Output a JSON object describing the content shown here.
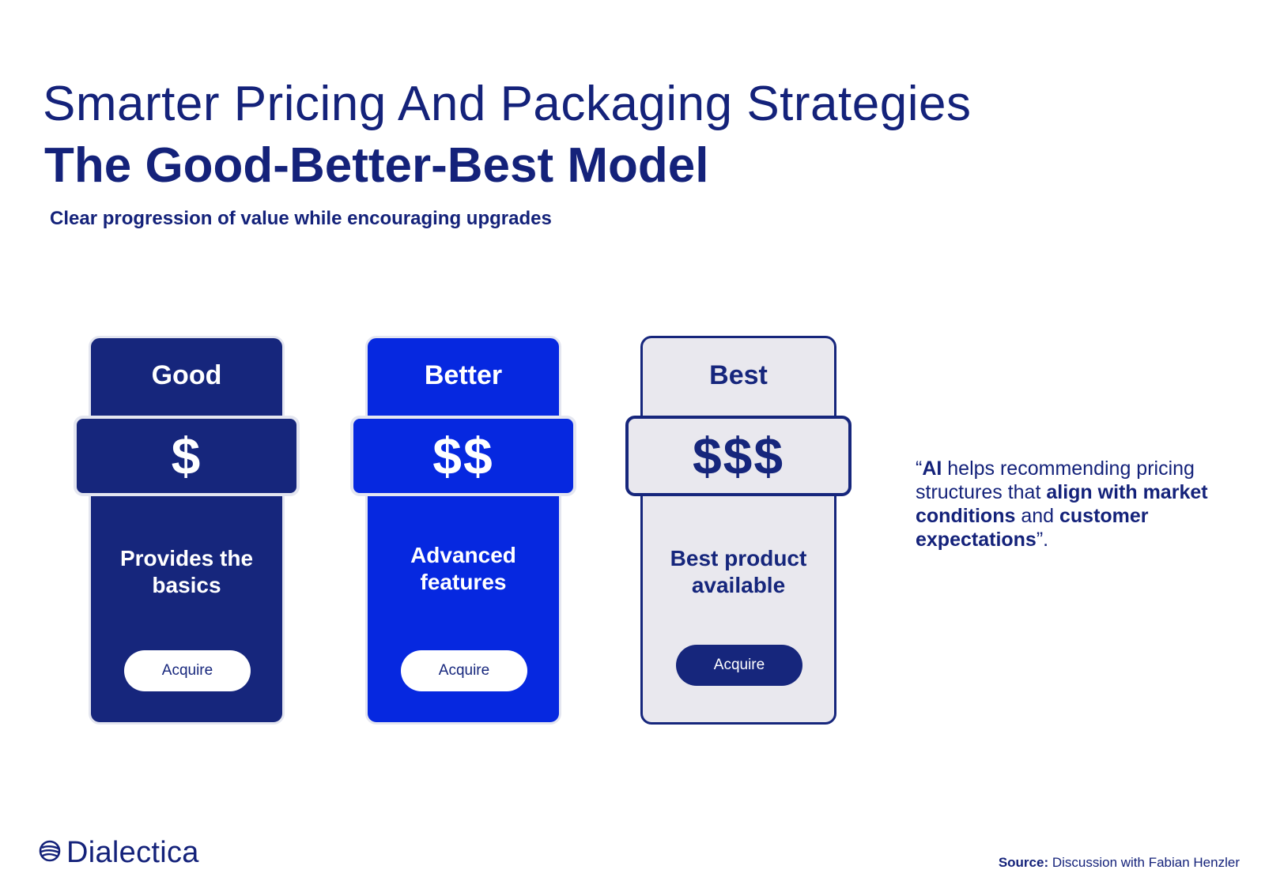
{
  "header": {
    "title": "Smarter Pricing And Packaging Strategies",
    "model_title": "The Good-Better-Best Model",
    "subtitle": "Clear progression of value while encouraging upgrades"
  },
  "tiers": [
    {
      "name": "Good",
      "price": "$",
      "description_line1": "Provides the",
      "description_line2": "basics",
      "button_label": "Acquire"
    },
    {
      "name": "Better",
      "price": "$$",
      "description_line1": "Advanced",
      "description_line2": "features",
      "button_label": "Acquire"
    },
    {
      "name": "Best",
      "price": "$$$",
      "description_line1": "Best product",
      "description_line2": "available",
      "button_label": "Acquire"
    }
  ],
  "quote": {
    "open": "“",
    "part1_bold": "AI",
    "part2": " helps recommending pricing structures that ",
    "part3_bold": "align with market conditions",
    "part4": " and ",
    "part5_bold": "customer expectations",
    "close": "”."
  },
  "footer": {
    "logo_text": "Dialectica",
    "source_label": "Source:",
    "source_text": " Discussion with Fabian Henzler"
  },
  "colors": {
    "navy": "#16267c",
    "blue": "#0628e0",
    "light_gray": "#e9e8ee"
  }
}
